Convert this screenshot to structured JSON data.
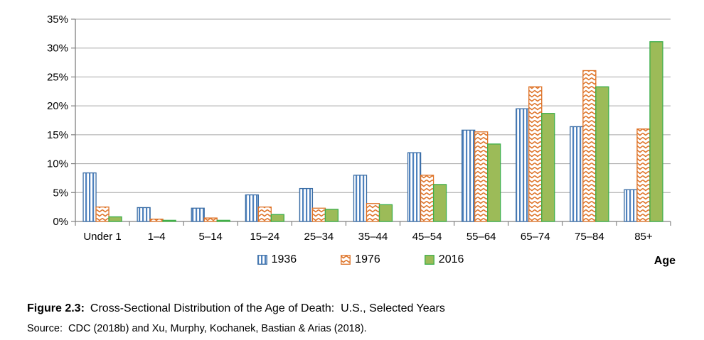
{
  "figure": {
    "caption_label": "Figure 2.3:",
    "caption_text": "Cross-Sectional Distribution of the Age of Death:  U.S., Selected Years",
    "source_text": "Source:  CDC (2018b) and Xu, Murphy, Kochanek, Bastian & Arias (2018).",
    "axis_corner_label": "Age"
  },
  "chart_data": {
    "type": "bar",
    "title": "",
    "xlabel": "Age",
    "ylabel": "",
    "ylim": [
      0,
      35
    ],
    "ytick_step": 5,
    "ytick_labels": [
      "0%",
      "5%",
      "10%",
      "15%",
      "20%",
      "25%",
      "30%",
      "35%"
    ],
    "grid": true,
    "legend_position": "bottom",
    "categories": [
      "Under 1",
      "1–4",
      "5–14",
      "15–24",
      "25–34",
      "35–44",
      "45–54",
      "55–64",
      "65–74",
      "75–84",
      "85+"
    ],
    "series": [
      {
        "name": "1936",
        "pattern": "vertical-stripes",
        "color": "#4E81BD",
        "border_color": "#3A6DA5",
        "values": [
          8.4,
          2.4,
          2.3,
          4.6,
          5.7,
          8.0,
          11.9,
          15.8,
          19.5,
          16.4,
          5.5
        ]
      },
      {
        "name": "1976",
        "pattern": "chevron",
        "color": "#DE7226",
        "border_color": "#DE7226",
        "values": [
          2.5,
          0.4,
          0.6,
          2.5,
          2.3,
          3.1,
          8.0,
          15.5,
          23.3,
          26.1,
          16.0
        ]
      },
      {
        "name": "2016",
        "pattern": "solid",
        "color": "#9CBB58",
        "border_color": "#3BAE49",
        "values": [
          0.8,
          0.2,
          0.2,
          1.2,
          2.1,
          2.9,
          6.4,
          13.4,
          18.7,
          23.3,
          31.1
        ]
      }
    ],
    "colors": {
      "gridline": "#A6A6A6",
      "axis": "#808080",
      "text": "#000000",
      "background": "#FFFFFF"
    }
  }
}
